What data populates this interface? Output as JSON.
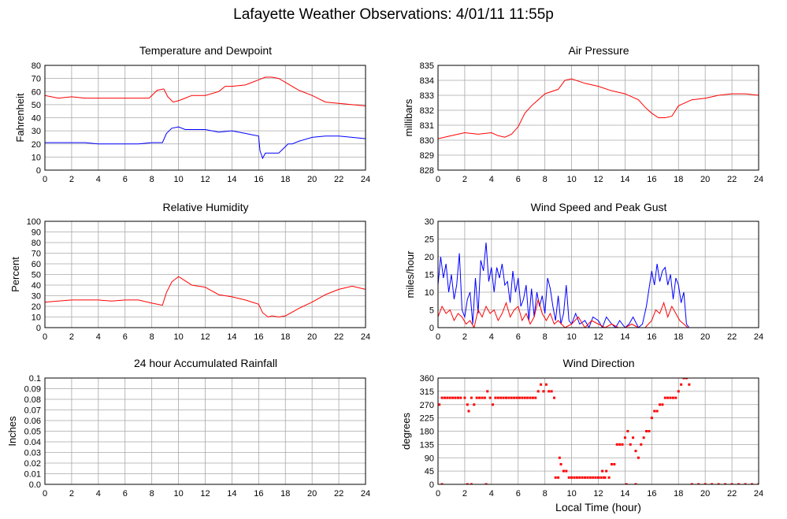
{
  "page": {
    "title": "Lafayette Weather Observations: 4/01/11 11:55p"
  },
  "x_axis_label": "Local Time (hour)",
  "chart_data": [
    {
      "id": "temperature",
      "type": "line",
      "title": "Temperature and Dewpoint",
      "xlabel": "",
      "ylabel": "Fahrenheit",
      "xlim": [
        0,
        24
      ],
      "ylim": [
        0,
        80
      ],
      "xticks": [
        0,
        2,
        4,
        6,
        8,
        10,
        12,
        14,
        16,
        18,
        20,
        22,
        24
      ],
      "yticks": [
        0,
        10,
        20,
        30,
        40,
        50,
        60,
        70,
        80
      ],
      "grid": true,
      "series": [
        {
          "color": "#ff0000",
          "x": [
            0,
            1,
            2,
            3,
            4,
            5,
            6,
            7,
            7.8,
            8.4,
            8.9,
            9.2,
            9.6,
            10,
            10.5,
            11,
            12,
            13,
            13.5,
            14,
            15,
            15.5,
            16,
            16.5,
            17,
            17.5,
            18,
            19,
            20,
            21,
            22,
            23,
            24
          ],
          "y": [
            57,
            55,
            56,
            55,
            55,
            55,
            55,
            55,
            55,
            61,
            62,
            56,
            52,
            53,
            55,
            57,
            57,
            60,
            64,
            64,
            65,
            67,
            69,
            71,
            71,
            70,
            67,
            61,
            57,
            52,
            51,
            50,
            49
          ]
        },
        {
          "color": "#0000ff",
          "x": [
            0,
            1,
            2,
            3,
            4,
            5,
            6,
            7,
            8,
            8.8,
            9.1,
            9.5,
            10,
            10.5,
            11,
            12,
            13,
            14,
            15,
            15.5,
            16,
            16.1,
            16.3,
            16.5,
            17,
            17.5,
            18,
            18.2,
            18.5,
            19,
            20,
            21,
            22,
            23,
            24
          ],
          "y": [
            21,
            21,
            21,
            21,
            20,
            20,
            20,
            20,
            21,
            21,
            28,
            32,
            33,
            31,
            31,
            31,
            29,
            30,
            28,
            27,
            26,
            15,
            9,
            13,
            13,
            13,
            18,
            20,
            20,
            22,
            25,
            26,
            26,
            25,
            24
          ]
        }
      ]
    },
    {
      "id": "pressure",
      "type": "line",
      "title": "Air Pressure",
      "xlabel": "",
      "ylabel": "millibars",
      "xlim": [
        0,
        24
      ],
      "ylim": [
        828,
        835
      ],
      "xticks": [
        0,
        2,
        4,
        6,
        8,
        10,
        12,
        14,
        16,
        18,
        20,
        22,
        24
      ],
      "yticks": [
        828,
        829,
        830,
        831,
        832,
        833,
        834,
        835
      ],
      "grid": true,
      "series": [
        {
          "color": "#ff0000",
          "x": [
            0,
            1,
            2,
            3,
            4,
            4.5,
            5,
            5.5,
            6,
            6.5,
            7,
            7.5,
            8,
            9,
            9.5,
            10,
            11,
            12,
            13,
            14,
            15,
            15.5,
            16,
            16.5,
            17,
            17.5,
            18,
            19,
            20,
            21,
            22,
            23,
            24
          ],
          "y": [
            830.1,
            830.3,
            830.5,
            830.4,
            830.5,
            830.3,
            830.2,
            830.4,
            830.9,
            831.8,
            832.3,
            832.7,
            833.1,
            833.4,
            834.0,
            834.1,
            833.8,
            833.6,
            833.3,
            833.1,
            832.7,
            832.2,
            831.8,
            831.5,
            831.5,
            831.6,
            832.3,
            832.7,
            832.8,
            833.0,
            833.1,
            833.1,
            833.0
          ]
        }
      ]
    },
    {
      "id": "humidity",
      "type": "line",
      "title": "Relative Humidity",
      "xlabel": "",
      "ylabel": "Percent",
      "xlim": [
        0,
        24
      ],
      "ylim": [
        0,
        100
      ],
      "xticks": [
        0,
        2,
        4,
        6,
        8,
        10,
        12,
        14,
        16,
        18,
        20,
        22,
        24
      ],
      "yticks": [
        0,
        10,
        20,
        30,
        40,
        50,
        60,
        70,
        80,
        90,
        100
      ],
      "grid": true,
      "series": [
        {
          "color": "#ff0000",
          "x": [
            0,
            1,
            2,
            3,
            4,
            5,
            6,
            7,
            8,
            8.8,
            9.1,
            9.5,
            10,
            10.5,
            11,
            12,
            13,
            14,
            15,
            15.5,
            16,
            16.3,
            16.7,
            17,
            17.5,
            18,
            19,
            20,
            21,
            22,
            23,
            24
          ],
          "y": [
            24,
            25,
            26,
            26,
            26,
            25,
            26,
            26,
            23,
            21,
            33,
            43,
            48,
            44,
            40,
            38,
            31,
            29,
            26,
            24,
            22,
            14,
            10,
            11,
            10,
            11,
            18,
            24,
            31,
            36,
            39,
            36
          ]
        }
      ]
    },
    {
      "id": "wind-speed",
      "type": "line",
      "title": "Wind Speed and Peak Gust",
      "xlabel": "",
      "ylabel": "miles/hour",
      "xlim": [
        0,
        24
      ],
      "ylim": [
        0,
        30
      ],
      "xticks": [
        0,
        2,
        4,
        6,
        8,
        10,
        12,
        14,
        16,
        18,
        20,
        22,
        24
      ],
      "yticks": [
        0,
        5,
        10,
        15,
        20,
        25,
        30
      ],
      "grid": true,
      "series": [
        {
          "color": "#0000ff",
          "x": [
            0,
            0.2,
            0.4,
            0.6,
            0.8,
            1.0,
            1.2,
            1.4,
            1.6,
            1.8,
            2.0,
            2.2,
            2.4,
            2.6,
            2.8,
            3.0,
            3.2,
            3.4,
            3.6,
            3.8,
            4.0,
            4.2,
            4.4,
            4.6,
            4.8,
            5.0,
            5.2,
            5.4,
            5.6,
            5.8,
            6.0,
            6.2,
            6.4,
            6.6,
            6.8,
            7.0,
            7.2,
            7.4,
            7.6,
            7.8,
            8.0,
            8.2,
            8.4,
            8.6,
            8.8,
            9.0,
            9.2,
            9.4,
            9.6,
            9.8,
            10,
            10.3,
            10.6,
            11,
            11.3,
            11.6,
            12,
            12.3,
            12.6,
            13,
            13.3,
            13.6,
            14,
            14.3,
            14.6,
            15,
            15.3,
            15.6,
            16,
            16.2,
            16.4,
            16.6,
            16.8,
            17.0,
            17.2,
            17.4,
            17.6,
            17.8,
            18.0,
            18.2,
            18.4,
            18.6,
            18.8,
            19,
            20,
            21,
            22,
            23,
            24
          ],
          "y": [
            12,
            20,
            14,
            18,
            10,
            15,
            8,
            12,
            21,
            5,
            3,
            8,
            10,
            1,
            14,
            4,
            19,
            16,
            24,
            13,
            17,
            10,
            17,
            14,
            18,
            12,
            13,
            7,
            16,
            10,
            14,
            6,
            8,
            12,
            2,
            11,
            3,
            10,
            6,
            9,
            4,
            14,
            11,
            6,
            2,
            9,
            1,
            4,
            12,
            2,
            1,
            4,
            1,
            2,
            0,
            3,
            2,
            0,
            3,
            1,
            0,
            2,
            0,
            1,
            3,
            0,
            1,
            6,
            16,
            12,
            18,
            13,
            16,
            17,
            12,
            15,
            8,
            14,
            12,
            7,
            10,
            1,
            0,
            0,
            0,
            0,
            0,
            0,
            0
          ]
        },
        {
          "color": "#ff0000",
          "x": [
            0,
            0.3,
            0.6,
            0.9,
            1.2,
            1.5,
            1.8,
            2.1,
            2.4,
            2.7,
            3.0,
            3.3,
            3.6,
            3.9,
            4.2,
            4.5,
            4.8,
            5.1,
            5.4,
            5.7,
            6.0,
            6.3,
            6.6,
            6.9,
            7.2,
            7.5,
            7.8,
            8.1,
            8.4,
            8.7,
            9.0,
            9.5,
            10,
            10.5,
            11,
            11.5,
            12,
            12.5,
            13,
            13.5,
            14,
            14.5,
            15,
            15.5,
            16,
            16.3,
            16.6,
            16.9,
            17.2,
            17.5,
            17.8,
            18.1,
            18.4,
            18.7,
            19,
            20,
            21,
            22,
            23,
            24
          ],
          "y": [
            3,
            6,
            4,
            5,
            2,
            4,
            3,
            1,
            2,
            0,
            5,
            3,
            6,
            4,
            5,
            2,
            4,
            7,
            3,
            5,
            6,
            2,
            4,
            1,
            3,
            8,
            4,
            2,
            4,
            1,
            2,
            0,
            1,
            3,
            0,
            2,
            1,
            0,
            1,
            0,
            0,
            1,
            0,
            0,
            2,
            5,
            4,
            7,
            3,
            6,
            4,
            2,
            1,
            0,
            0,
            0,
            0,
            0,
            0,
            0
          ]
        }
      ]
    },
    {
      "id": "rainfall",
      "type": "line",
      "title": "24 hour Accumulated Rainfall",
      "xlabel": "",
      "ylabel": "Inches",
      "xlim": [
        0,
        24
      ],
      "ylim": [
        0,
        0.1
      ],
      "xticks": [
        0,
        2,
        4,
        6,
        8,
        10,
        12,
        14,
        16,
        18,
        20,
        22,
        24
      ],
      "yticks": [
        0.0,
        0.01,
        0.02,
        0.03,
        0.04,
        0.05,
        0.06,
        0.07,
        0.08,
        0.09,
        0.1
      ],
      "ytick_labels": [
        "0.0",
        "0.01",
        "0.02",
        "0.03",
        "0.04",
        "0.05",
        "0.06",
        "0.07",
        "0.08",
        "0.09",
        "0.1"
      ],
      "grid": true,
      "series": [
        {
          "color": "#ff0000",
          "x": [
            0,
            24
          ],
          "y": [
            0,
            0
          ]
        }
      ]
    },
    {
      "id": "wind-direction",
      "type": "scatter",
      "title": "Wind Direction",
      "xlabel": "Local Time (hour)",
      "ylabel": "degrees",
      "xlim": [
        0,
        24
      ],
      "ylim": [
        0,
        360
      ],
      "xticks": [
        0,
        2,
        4,
        6,
        8,
        10,
        12,
        14,
        16,
        18,
        20,
        22,
        24
      ],
      "yticks": [
        0,
        45,
        90,
        135,
        180,
        225,
        270,
        315,
        360
      ],
      "grid": true,
      "series": [
        {
          "color": "#ff0000",
          "x": [
            0.1,
            0.3,
            0.5,
            0.7,
            0.9,
            1.1,
            1.3,
            1.5,
            1.7,
            2.0,
            2.2,
            2.3,
            2.5,
            2.7,
            2.9,
            3.1,
            3.3,
            3.5,
            3.7,
            3.9,
            4.1,
            4.3,
            4.5,
            4.7,
            4.9,
            5.1,
            5.3,
            5.5,
            5.7,
            5.9,
            6.1,
            6.3,
            6.5,
            6.7,
            6.9,
            7.1,
            7.3,
            7.5,
            7.7,
            7.9,
            8.1,
            8.3,
            8.5,
            8.7,
            9.0,
            9.2,
            9.4,
            9.6,
            9.8,
            10.0,
            10.2,
            10.4,
            10.6,
            10.8,
            11.0,
            11.2,
            11.4,
            11.6,
            11.8,
            12.0,
            12.2,
            12.4,
            12.6,
            12.8,
            13.0,
            13.2,
            13.4,
            13.6,
            13.8,
            14.0,
            14.2,
            14.4,
            14.6,
            14.8,
            15.0,
            15.2,
            15.4,
            15.6,
            15.8,
            16.0,
            16.2,
            16.4,
            16.6,
            16.8,
            17.0,
            17.2,
            17.4,
            17.6,
            17.8,
            18.0,
            18.2,
            18.4,
            18.6,
            18.8,
            19.0,
            19.5,
            20,
            20.5,
            21,
            21.5,
            22,
            22.5,
            23,
            23.5,
            24,
            2.2,
            2.5,
            3.6,
            0.3,
            8.8,
            9.1,
            12.3,
            12.5,
            14.1,
            14.8
          ],
          "y": [
            270,
            293,
            293,
            293,
            293,
            293,
            293,
            293,
            293,
            293,
            270,
            248,
            293,
            270,
            293,
            293,
            293,
            293,
            315,
            293,
            270,
            293,
            293,
            293,
            293,
            293,
            293,
            293,
            293,
            293,
            293,
            293,
            293,
            293,
            293,
            293,
            293,
            315,
            338,
            315,
            338,
            315,
            315,
            293,
            23,
            68,
            45,
            45,
            23,
            23,
            23,
            23,
            23,
            23,
            23,
            23,
            23,
            23,
            23,
            23,
            23,
            23,
            45,
            23,
            68,
            68,
            135,
            135,
            135,
            158,
            180,
            135,
            158,
            113,
            90,
            135,
            158,
            180,
            180,
            225,
            248,
            248,
            270,
            270,
            293,
            293,
            293,
            293,
            293,
            315,
            338,
            360,
            360,
            338,
            0,
            0,
            0,
            0,
            0,
            0,
            0,
            0,
            0,
            0,
            0,
            0,
            0,
            0,
            0,
            23,
            90,
            45,
            23,
            0,
            0
          ]
        }
      ]
    }
  ]
}
